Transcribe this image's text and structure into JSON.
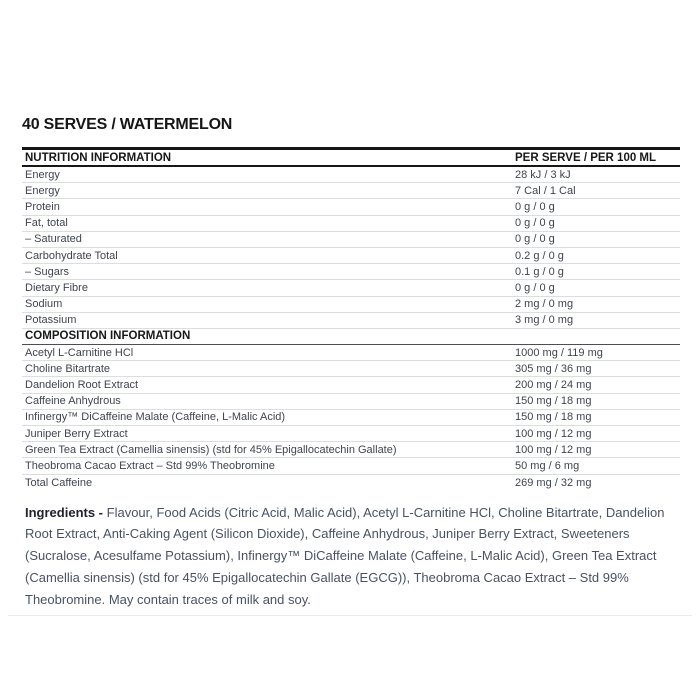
{
  "page": {
    "title": "40 SERVES / WATERMELON"
  },
  "colors": {
    "heading_text": "#161616",
    "body_text": "#3f4450",
    "ingredients_text": "#495264",
    "rule_black": "#161616",
    "row_divider": "#dcdde1",
    "bottom_divider": "#e9e9ee"
  },
  "nutrition_table": {
    "header": {
      "left": "NUTRITION INFORMATION",
      "right": "PER SERVE / PER 100 ML"
    },
    "nutrition_rows": [
      {
        "label": "Energy",
        "value": "28 kJ / 3 kJ"
      },
      {
        "label": "Energy",
        "value": "7 Cal / 1 Cal"
      },
      {
        "label": "Protein",
        "value": "0 g / 0 g"
      },
      {
        "label": "Fat, total",
        "value": "0 g / 0 g"
      },
      {
        "label": "– Saturated",
        "value": "0 g / 0 g"
      },
      {
        "label": "Carbohydrate Total",
        "value": "0.2 g / 0 g"
      },
      {
        "label": "– Sugars",
        "value": "0.1 g / 0 g"
      },
      {
        "label": "Dietary Fibre",
        "value": "0 g / 0 g"
      },
      {
        "label": "Sodium",
        "value": "2 mg / 0 mg"
      },
      {
        "label": "Potassium",
        "value": "3 mg / 0 mg"
      }
    ],
    "composition_header": "COMPOSITION INFORMATION",
    "composition_rows": [
      {
        "label": "Acetyl L-Carnitine HCl",
        "value": "1000 mg / 119 mg"
      },
      {
        "label": "Choline Bitartrate",
        "value": "305 mg / 36 mg"
      },
      {
        "label": "Dandelion Root Extract",
        "value": "200 mg / 24 mg"
      },
      {
        "label": "Caffeine Anhydrous",
        "value": "150 mg / 18 mg"
      },
      {
        "label": "Infinergy™ DiCaffeine Malate (Caffeine, L-Malic Acid)",
        "value": "150 mg / 18 mg"
      },
      {
        "label": "Juniper Berry Extract",
        "value": "100 mg / 12 mg"
      },
      {
        "label": "Green Tea Extract (Camellia sinensis) (std for 45% Epigallocatechin Gallate)",
        "value": "100 mg / 12 mg"
      },
      {
        "label": "Theobroma Cacao Extract – Std 99% Theobromine",
        "value": "50 mg / 6 mg"
      },
      {
        "label": "Total Caffeine",
        "value": "269 mg / 32 mg"
      }
    ]
  },
  "ingredients": {
    "label": "Ingredients -",
    "text": "Flavour, Food Acids (Citric Acid, Malic Acid), Acetyl L-Carnitine HCl, Choline Bitartrate, Dandelion Root Extract, Anti-Caking Agent (Silicon Dioxide), Caffeine Anhydrous, Juniper Berry Extract, Sweeteners (Sucralose, Acesulfame Potassium), Infinergy™ DiCaffeine Malate (Caffeine, L-Malic Acid), Green Tea Extract (Camellia sinensis) (std for 45% Epigallocatechin Gallate (EGCG)), Theobroma Cacao Extract – Std 99% Theobromine. May contain traces of milk and soy."
  }
}
